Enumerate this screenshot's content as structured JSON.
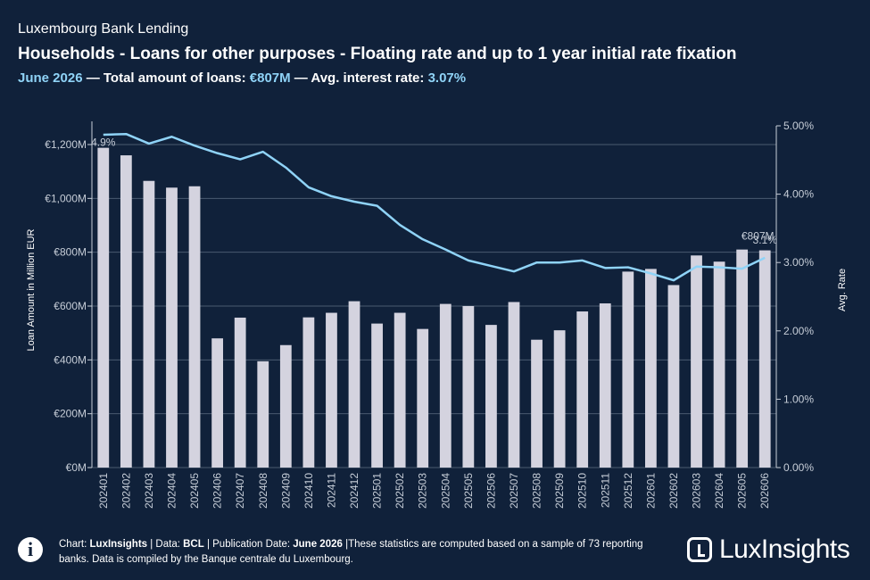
{
  "header": {
    "kicker": "Luxembourg Bank Lending",
    "title": "Households - Loans for other purposes - Floating rate and up to 1 year initial rate fixation",
    "subtitle": {
      "period": "June 2026",
      "sep1": " — Total amount of loans: ",
      "amount": "€807M",
      "sep2": " — Avg. interest rate: ",
      "rate": "3.07%"
    }
  },
  "chart_data": {
    "type": "bar+line",
    "categories": [
      "202401",
      "202402",
      "202403",
      "202404",
      "202405",
      "202406",
      "202407",
      "202408",
      "202409",
      "202410",
      "202411",
      "202412",
      "202501",
      "202502",
      "202503",
      "202504",
      "202505",
      "202506",
      "202507",
      "202508",
      "202509",
      "202510",
      "202511",
      "202512",
      "202601",
      "202602",
      "202603",
      "202604",
      "202605",
      "202606"
    ],
    "series": [
      {
        "name": "Loan Amount",
        "axis": "left",
        "values": [
          1188,
          1160,
          1065,
          1040,
          1045,
          480,
          557,
          395,
          455,
          558,
          575,
          618,
          535,
          575,
          515,
          608,
          600,
          530,
          615,
          475,
          510,
          580,
          610,
          728,
          738,
          678,
          788,
          765,
          810,
          807
        ]
      },
      {
        "name": "Avg. Rate",
        "axis": "right",
        "values": [
          4.87,
          4.88,
          4.74,
          4.84,
          4.71,
          4.6,
          4.51,
          4.62,
          4.39,
          4.1,
          3.97,
          3.89,
          3.83,
          3.55,
          3.34,
          3.19,
          3.03,
          2.95,
          2.87,
          3.0,
          3.0,
          3.03,
          2.92,
          2.93,
          2.84,
          2.74,
          2.94,
          2.93,
          2.91,
          3.07
        ]
      }
    ],
    "y_left": {
      "label": "Loan Amount in Million EUR",
      "ticks": [
        "€0M",
        "€200M",
        "€400M",
        "€600M",
        "€800M",
        "€1,000M",
        "€1,200M"
      ],
      "range": [
        0,
        1200
      ]
    },
    "y_right": {
      "label": "Avg. Rate",
      "ticks": [
        "0.00%",
        "1.00%",
        "2.00%",
        "3.00%",
        "4.00%",
        "5.00%"
      ],
      "range": [
        0,
        5
      ]
    },
    "annotations": {
      "first_rate": "4.9%",
      "last_amount": "€807M",
      "last_rate": "3.1%"
    },
    "colors": {
      "bar": "#d4d3df",
      "line": "#8fd3f7",
      "grid": "#4a5a70",
      "background": "#10213a"
    },
    "grid": true
  },
  "footer": {
    "info_icon": "info-icon",
    "chart_label": "Chart: ",
    "chart_by": "LuxInsights",
    "data_label": " | Data: ",
    "data_by": "BCL",
    "pub_label": " | Publication Date: ",
    "pub_date": "June 2026",
    "note": " |These statistics are computed based on a sample of 73 reporting banks. Data is compiled by the Banque centrale du Luxembourg.",
    "logo_text": "LuxInsights"
  }
}
